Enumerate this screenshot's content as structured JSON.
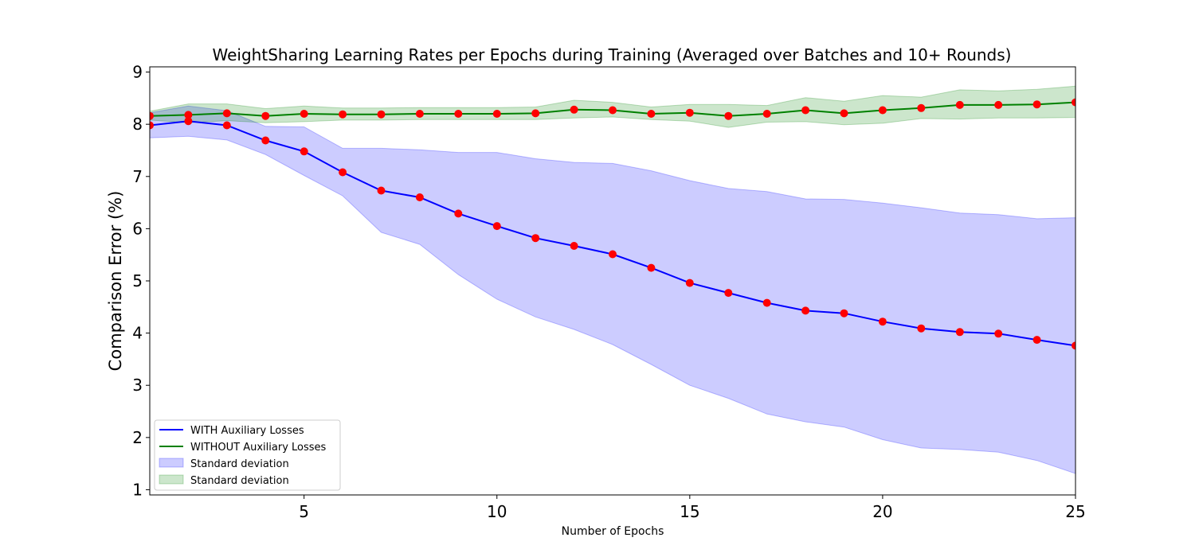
{
  "chart_data": {
    "type": "line",
    "title": "WeightSharing Learning Rates per Epochs during Training (Averaged over Batches and 10+ Rounds)",
    "xlabel": "Number of Epochs",
    "ylabel": "Comparison Error (%)",
    "xlim": [
      1,
      25
    ],
    "ylim": [
      0.9,
      9.1
    ],
    "xticks": [
      5,
      10,
      15,
      20,
      25
    ],
    "yticks": [
      1,
      2,
      3,
      4,
      5,
      6,
      7,
      8,
      9
    ],
    "grid": false,
    "legend_position": "lower-left",
    "x": [
      1,
      2,
      3,
      4,
      5,
      6,
      7,
      8,
      9,
      10,
      11,
      12,
      13,
      14,
      15,
      16,
      17,
      18,
      19,
      20,
      21,
      22,
      23,
      24,
      25
    ],
    "series": [
      {
        "name": "WITH Auxiliary Losses",
        "color": "#0000ff",
        "marker_color": "#ff0000",
        "values": [
          7.98,
          8.06,
          7.98,
          7.69,
          7.48,
          7.08,
          6.73,
          6.6,
          6.29,
          6.05,
          5.82,
          5.67,
          5.51,
          5.25,
          4.96,
          4.77,
          4.58,
          4.43,
          4.38,
          4.22,
          4.09,
          4.02,
          3.99,
          3.87,
          3.76
        ],
        "band_name": "Standard deviation",
        "band_color": "#0000ff",
        "band_opacity": 0.2,
        "lower": [
          7.74,
          7.77,
          7.7,
          7.42,
          7.02,
          6.63,
          5.93,
          5.7,
          5.12,
          4.65,
          4.31,
          4.07,
          3.78,
          3.4,
          3.0,
          2.75,
          2.45,
          2.3,
          2.2,
          1.96,
          1.8,
          1.77,
          1.72,
          1.56,
          1.31
        ],
        "upper": [
          8.22,
          8.35,
          8.26,
          7.96,
          7.95,
          7.54,
          7.54,
          7.51,
          7.46,
          7.46,
          7.34,
          7.27,
          7.25,
          7.11,
          6.92,
          6.77,
          6.71,
          6.57,
          6.56,
          6.49,
          6.4,
          6.3,
          6.27,
          6.19,
          6.21
        ]
      },
      {
        "name": "WITHOUT Auxiliary Losses",
        "color": "#008000",
        "marker_color": "#ff0000",
        "values": [
          8.16,
          8.18,
          8.21,
          8.16,
          8.2,
          8.19,
          8.19,
          8.2,
          8.2,
          8.2,
          8.21,
          8.28,
          8.27,
          8.2,
          8.22,
          8.16,
          8.2,
          8.27,
          8.21,
          8.27,
          8.31,
          8.37,
          8.37,
          8.38,
          8.42
        ],
        "band_name": "Standard deviation",
        "band_color": "#008000",
        "band_opacity": 0.2,
        "lower": [
          8.08,
          8.03,
          8.07,
          8.03,
          8.05,
          8.08,
          8.08,
          8.09,
          8.09,
          8.09,
          8.09,
          8.12,
          8.14,
          8.09,
          8.06,
          7.94,
          8.04,
          8.05,
          7.99,
          8.02,
          8.11,
          8.1,
          8.12,
          8.12,
          8.13
        ],
        "upper": [
          8.25,
          8.39,
          8.39,
          8.3,
          8.35,
          8.31,
          8.31,
          8.32,
          8.32,
          8.32,
          8.33,
          8.46,
          8.42,
          8.33,
          8.38,
          8.38,
          8.36,
          8.51,
          8.44,
          8.55,
          8.52,
          8.66,
          8.64,
          8.67,
          8.73
        ]
      }
    ]
  }
}
